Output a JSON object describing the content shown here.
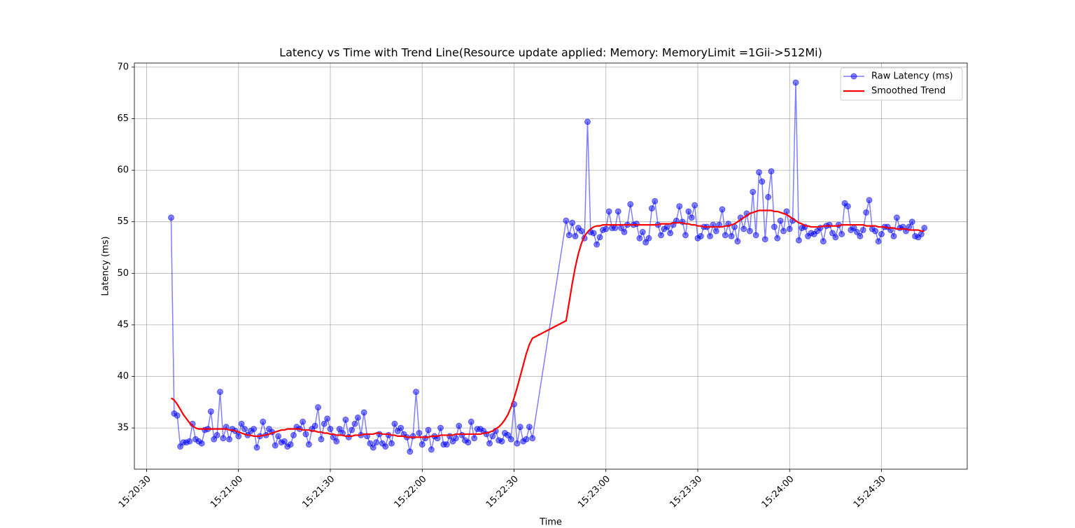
{
  "chart_data": {
    "type": "line",
    "title": "Latency vs Time with Trend Line(Resource update applied: Memory: MemoryLimit =1Gii->512Mi)",
    "xlabel": "Time",
    "ylabel": "Latency (ms)",
    "x": [
      "15:20:38",
      "15:20:39",
      "15:20:40",
      "15:20:41",
      "15:20:42",
      "15:20:43",
      "15:20:44",
      "15:20:45",
      "15:20:46",
      "15:20:47",
      "15:20:48",
      "15:20:49",
      "15:20:50",
      "15:20:51",
      "15:20:52",
      "15:20:53",
      "15:20:54",
      "15:20:55",
      "15:20:56",
      "15:20:57",
      "15:20:58",
      "15:20:59",
      "15:21:00",
      "15:21:01",
      "15:21:02",
      "15:21:03",
      "15:21:04",
      "15:21:05",
      "15:21:06",
      "15:21:07",
      "15:21:08",
      "15:21:09",
      "15:21:10",
      "15:21:11",
      "15:21:12",
      "15:21:13",
      "15:21:14",
      "15:21:15",
      "15:21:16",
      "15:21:17",
      "15:21:18",
      "15:21:19",
      "15:21:20",
      "15:21:21",
      "15:21:22",
      "15:21:23",
      "15:21:24",
      "15:21:25",
      "15:21:26",
      "15:21:27",
      "15:21:28",
      "15:21:29",
      "15:21:30",
      "15:21:31",
      "15:21:32",
      "15:21:33",
      "15:21:34",
      "15:21:35",
      "15:21:36",
      "15:21:37",
      "15:21:38",
      "15:21:39",
      "15:21:40",
      "15:21:41",
      "15:21:42",
      "15:21:43",
      "15:21:44",
      "15:21:45",
      "15:21:46",
      "15:21:47",
      "15:21:48",
      "15:21:49",
      "15:21:50",
      "15:21:51",
      "15:21:52",
      "15:21:53",
      "15:21:54",
      "15:21:55",
      "15:21:56",
      "15:21:57",
      "15:21:58",
      "15:21:59",
      "15:22:00",
      "15:22:01",
      "15:22:02",
      "15:22:03",
      "15:22:04",
      "15:22:05",
      "15:22:06",
      "15:22:07",
      "15:22:08",
      "15:22:09",
      "15:22:10",
      "15:22:11",
      "15:22:12",
      "15:22:13",
      "15:22:14",
      "15:22:15",
      "15:22:16",
      "15:22:17",
      "15:22:18",
      "15:22:19",
      "15:22:20",
      "15:22:21",
      "15:22:22",
      "15:22:23",
      "15:22:24",
      "15:22:25",
      "15:22:26",
      "15:22:27",
      "15:22:28",
      "15:22:29",
      "15:22:30",
      "15:22:31",
      "15:22:32",
      "15:22:33",
      "15:22:34",
      "15:22:35",
      "15:22:36",
      "15:22:47",
      "15:22:48",
      "15:22:49",
      "15:22:50",
      "15:22:51",
      "15:22:52",
      "15:22:53",
      "15:22:54",
      "15:22:55",
      "15:22:56",
      "15:22:57",
      "15:22:58",
      "15:22:59",
      "15:23:00",
      "15:23:01",
      "15:23:02",
      "15:23:03",
      "15:23:04",
      "15:23:05",
      "15:23:06",
      "15:23:07",
      "15:23:08",
      "15:23:09",
      "15:23:10",
      "15:23:11",
      "15:23:12",
      "15:23:13",
      "15:23:14",
      "15:23:15",
      "15:23:16",
      "15:23:17",
      "15:23:18",
      "15:23:19",
      "15:23:20",
      "15:23:21",
      "15:23:22",
      "15:23:23",
      "15:23:24",
      "15:23:25",
      "15:23:26",
      "15:23:27",
      "15:23:28",
      "15:23:29",
      "15:23:30",
      "15:23:31",
      "15:23:32",
      "15:23:33",
      "15:23:34",
      "15:23:35",
      "15:23:36",
      "15:23:37",
      "15:23:38",
      "15:23:39",
      "15:23:40",
      "15:23:41",
      "15:23:42",
      "15:23:43",
      "15:23:44",
      "15:23:45",
      "15:23:46",
      "15:23:47",
      "15:23:48",
      "15:23:49",
      "15:23:50",
      "15:23:51",
      "15:23:52",
      "15:23:53",
      "15:23:54",
      "15:23:55",
      "15:23:56",
      "15:23:57",
      "15:23:58",
      "15:23:59",
      "15:24:00",
      "15:24:01",
      "15:24:02",
      "15:24:03",
      "15:24:04",
      "15:24:05",
      "15:24:06",
      "15:24:07",
      "15:24:08",
      "15:24:09",
      "15:24:10",
      "15:24:11",
      "15:24:12",
      "15:24:13",
      "15:24:14",
      "15:24:15",
      "15:24:16",
      "15:24:17",
      "15:24:18",
      "15:24:19",
      "15:24:20",
      "15:24:21",
      "15:24:22",
      "15:24:23",
      "15:24:24",
      "15:24:25",
      "15:24:26",
      "15:24:27",
      "15:24:28",
      "15:24:29",
      "15:24:30",
      "15:24:31",
      "15:24:32",
      "15:24:33",
      "15:24:34",
      "15:24:35",
      "15:24:36",
      "15:24:37",
      "15:24:38",
      "15:24:39",
      "15:24:40",
      "15:24:41",
      "15:24:42",
      "15:24:43",
      "15:24:44"
    ],
    "series": [
      {
        "name": "Raw Latency (ms)",
        "color": "#0000ff",
        "marker": "o",
        "values": [
          55.4,
          36.4,
          36.2,
          33.2,
          33.6,
          33.6,
          33.7,
          35.4,
          33.9,
          33.7,
          33.5,
          34.8,
          34.9,
          36.6,
          33.9,
          34.3,
          38.5,
          34.0,
          35.1,
          33.9,
          34.9,
          34.7,
          34.2,
          35.4,
          34.9,
          34.3,
          34.7,
          34.9,
          33.1,
          34.2,
          35.6,
          34.3,
          34.9,
          34.6,
          33.3,
          34.2,
          33.6,
          33.7,
          33.2,
          33.4,
          34.3,
          35.1,
          34.9,
          35.6,
          34.4,
          33.4,
          34.9,
          35.2,
          37.0,
          33.9,
          35.4,
          35.9,
          34.9,
          34.1,
          33.7,
          34.9,
          34.5,
          35.8,
          34.1,
          34.8,
          35.4,
          36.0,
          34.3,
          36.5,
          34.2,
          33.5,
          33.1,
          33.6,
          34.4,
          33.5,
          33.2,
          34.3,
          33.5,
          35.4,
          34.7,
          35.0,
          34.4,
          34.1,
          32.7,
          34.2,
          38.5,
          34.5,
          33.4,
          34.0,
          34.8,
          32.9,
          34.2,
          34.0,
          35.0,
          33.4,
          33.4,
          34.2,
          33.7,
          34.0,
          35.2,
          34.3,
          33.8,
          33.6,
          35.6,
          34.0,
          34.9,
          34.9,
          34.7,
          34.4,
          33.5,
          34.2,
          34.7,
          33.8,
          33.7,
          34.5,
          34.3,
          33.9,
          37.3,
          33.5,
          35.1,
          33.7,
          33.9,
          35.1,
          34.0,
          55.1,
          53.7,
          54.9,
          53.6,
          54.4,
          54.1,
          53.4,
          64.7,
          54.0,
          53.9,
          52.8,
          53.5,
          54.2,
          54.3,
          56.0,
          54.4,
          54.4,
          56.0,
          54.4,
          54.0,
          54.7,
          56.7,
          54.7,
          54.8,
          53.4,
          54.0,
          53.0,
          53.4,
          56.3,
          57.0,
          54.7,
          53.7,
          54.3,
          54.5,
          53.9,
          54.7,
          55.1,
          56.5,
          55.0,
          53.7,
          56.0,
          55.4,
          56.6,
          53.4,
          53.6,
          54.5,
          54.5,
          53.6,
          54.7,
          54.1,
          54.7,
          56.2,
          53.7,
          54.8,
          53.6,
          54.5,
          53.1,
          55.4,
          54.3,
          55.8,
          54.1,
          57.9,
          53.7,
          59.8,
          58.9,
          53.3,
          57.4,
          59.9,
          54.5,
          53.4,
          55.1,
          54.1,
          56.0,
          54.3,
          55.1,
          68.5,
          53.2,
          54.4,
          54.5,
          53.6,
          53.9,
          53.8,
          54.1,
          54.4,
          53.1,
          54.6,
          54.7,
          53.9,
          53.5,
          54.7,
          53.8,
          56.8,
          56.5,
          54.2,
          54.4,
          54.0,
          53.6,
          54.2,
          55.9,
          57.1,
          54.3,
          54.1,
          53.1,
          53.8,
          54.5,
          54.5,
          54.2,
          53.6,
          55.4,
          54.4,
          54.5,
          54.1,
          54.5,
          55.0,
          53.6,
          53.5,
          53.8,
          54.4
        ]
      },
      {
        "name": "Smoothed Trend",
        "color": "#ff0000",
        "values": [
          37.9,
          37.7,
          37.3,
          36.8,
          36.3,
          35.9,
          35.5,
          35.2,
          35.0,
          34.9,
          34.9,
          34.9,
          34.9,
          34.9,
          34.9,
          34.9,
          34.9,
          34.9,
          34.9,
          34.8,
          34.8,
          34.7,
          34.6,
          34.5,
          34.4,
          34.3,
          34.3,
          34.2,
          34.2,
          34.2,
          34.3,
          34.3,
          34.4,
          34.5,
          34.6,
          34.7,
          34.8,
          34.8,
          34.9,
          34.9,
          34.9,
          34.9,
          34.9,
          34.8,
          34.8,
          34.8,
          34.7,
          34.7,
          34.6,
          34.6,
          34.5,
          34.5,
          34.4,
          34.4,
          34.3,
          34.3,
          34.3,
          34.2,
          34.2,
          34.2,
          34.3,
          34.3,
          34.3,
          34.4,
          34.4,
          34.4,
          34.4,
          34.5,
          34.5,
          34.4,
          34.4,
          34.4,
          34.3,
          34.3,
          34.2,
          34.2,
          34.2,
          34.1,
          34.1,
          34.1,
          34.1,
          34.1,
          34.1,
          34.1,
          34.1,
          34.2,
          34.2,
          34.2,
          34.3,
          34.3,
          34.3,
          34.3,
          34.3,
          34.4,
          34.4,
          34.4,
          34.4,
          34.4,
          34.4,
          34.4,
          34.4,
          34.4,
          34.5,
          34.5,
          34.6,
          34.7,
          34.9,
          35.1,
          35.4,
          35.8,
          36.3,
          37.0,
          37.9,
          38.9,
          40.0,
          41.1,
          42.2,
          43.1,
          43.7,
          45.4,
          47.2,
          49.0,
          50.6,
          51.9,
          52.9,
          53.6,
          54.0,
          54.3,
          54.5,
          54.6,
          54.6,
          54.7,
          54.7,
          54.7,
          54.7,
          54.7,
          54.7,
          54.7,
          54.7,
          54.7,
          54.7,
          54.7,
          54.7,
          54.7,
          54.7,
          54.7,
          54.7,
          54.7,
          54.7,
          54.7,
          54.8,
          54.8,
          54.8,
          54.8,
          54.9,
          54.9,
          54.9,
          54.9,
          54.8,
          54.8,
          54.7,
          54.7,
          54.6,
          54.6,
          54.5,
          54.5,
          54.5,
          54.5,
          54.5,
          54.5,
          54.5,
          54.6,
          54.6,
          54.7,
          54.8,
          55.0,
          55.2,
          55.4,
          55.6,
          55.8,
          55.9,
          56.0,
          56.1,
          56.1,
          56.1,
          56.1,
          56.1,
          56.0,
          56.0,
          55.9,
          55.8,
          55.7,
          55.5,
          55.3,
          55.1,
          54.9,
          54.8,
          54.6,
          54.6,
          54.5,
          54.5,
          54.5,
          54.5,
          54.6,
          54.6,
          54.6,
          54.6,
          54.6,
          54.6,
          54.7,
          54.7,
          54.7,
          54.7,
          54.7,
          54.7,
          54.7,
          54.7,
          54.6,
          54.6,
          54.6,
          54.6,
          54.5,
          54.5,
          54.5,
          54.4,
          54.4,
          54.4,
          54.3,
          54.3,
          54.3,
          54.3,
          54.2,
          54.2,
          54.2,
          54.2,
          54.1,
          54.1
        ]
      }
    ],
    "xlim": [
      "15:20:26",
      "15:24:58"
    ],
    "xticks": [
      "15:20:30",
      "15:21:00",
      "15:21:30",
      "15:22:00",
      "15:22:30",
      "15:23:00",
      "15:23:30",
      "15:24:00",
      "15:24:30"
    ],
    "ylim": [
      31,
      70.4
    ],
    "yticks": [
      35,
      40,
      45,
      50,
      55,
      60,
      65,
      70
    ],
    "grid": true,
    "legend": "upper right"
  }
}
